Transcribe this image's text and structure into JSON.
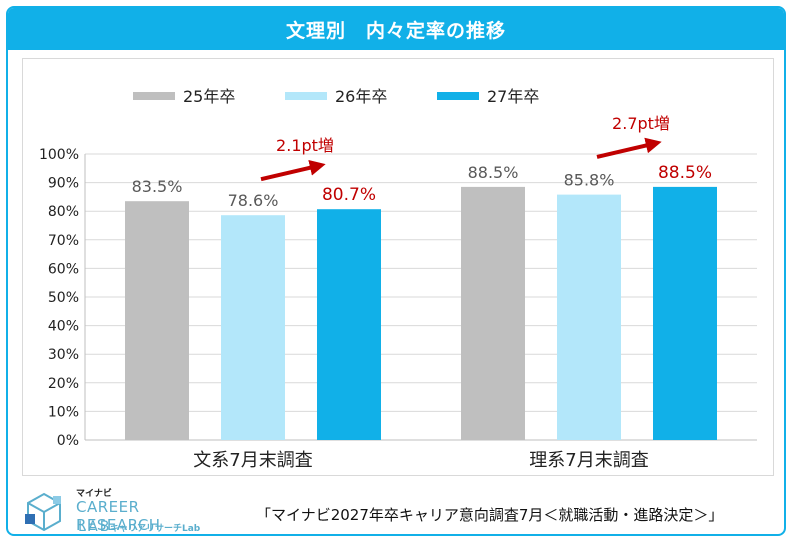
{
  "header": {
    "title": "文理別　内々定率の推移"
  },
  "chart_data": {
    "type": "bar",
    "categories": [
      "文系7月末調査",
      "理系7月末調査"
    ],
    "series": [
      {
        "name": "25年卒",
        "values": [
          83.5,
          88.5
        ],
        "color": "#bfbfbf"
      },
      {
        "name": "26年卒",
        "values": [
          78.6,
          85.8
        ],
        "color": "#b3e7fa"
      },
      {
        "name": "27年卒",
        "values": [
          80.7,
          88.5
        ],
        "color": "#11b0e8"
      }
    ],
    "data_labels": [
      [
        "83.5%",
        "88.5%"
      ],
      [
        "78.6%",
        "85.8%"
      ],
      [
        "80.7%",
        "88.5%"
      ]
    ],
    "highlight_color": "#c00000",
    "ylim": [
      0,
      100
    ],
    "yticks": [
      "0%",
      "10%",
      "20%",
      "30%",
      "40%",
      "50%",
      "60%",
      "70%",
      "80%",
      "90%",
      "100%"
    ],
    "legend_position": "top",
    "grid": true,
    "annotations": [
      {
        "category": 0,
        "text": "2.1pt増"
      },
      {
        "category": 1,
        "text": "2.7pt増"
      }
    ]
  },
  "footer": {
    "logo": {
      "kana": "マイナビ",
      "name": "CAREER RESEARCH",
      "lab": "LAB",
      "kana_lab": "キャリアリサーチLab"
    },
    "source": "「マイナビ2027年卒キャリア意向調査7月＜就職活動・進路決定＞」"
  }
}
